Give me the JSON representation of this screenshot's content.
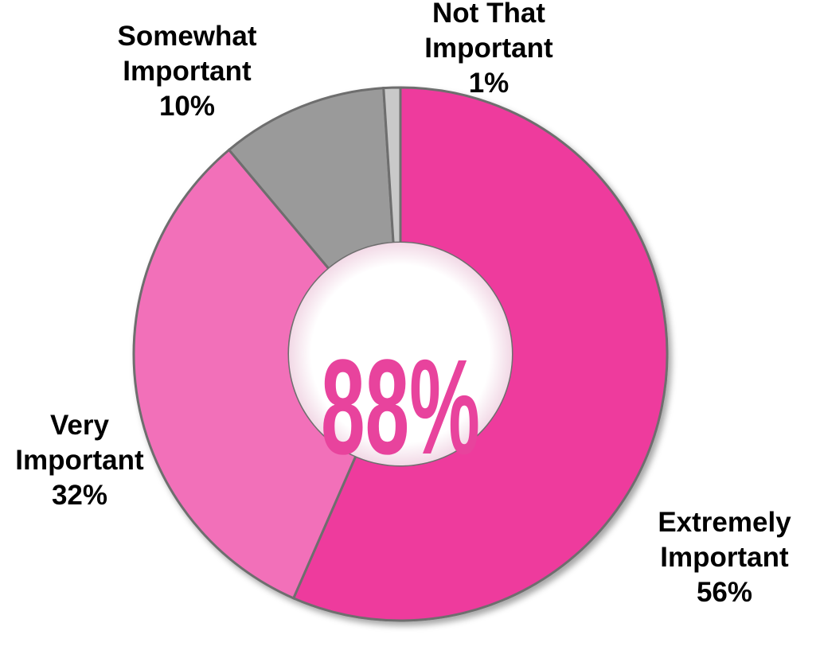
{
  "chart_data": {
    "type": "pie",
    "subtype": "donut",
    "categories": [
      "Extremely Important",
      "Very Important",
      "Somewhat Important",
      "Not That Important"
    ],
    "values": [
      56,
      32,
      10,
      1
    ],
    "value_labels": [
      "56%",
      "32%",
      "10%",
      "1%"
    ],
    "label_lines": [
      [
        "Extremely",
        "Important",
        "56%"
      ],
      [
        "Very",
        "Important",
        "32%"
      ],
      [
        "Somewhat",
        "Important",
        "10%"
      ],
      [
        "Not That",
        "Important",
        "1%"
      ]
    ],
    "colors": [
      "#ee3a9d",
      "#f26fb9",
      "#9a9a9a",
      "#c9c9c9"
    ],
    "center_text": "88%",
    "center_color": "#e8439d",
    "legend": "none",
    "title": ""
  }
}
